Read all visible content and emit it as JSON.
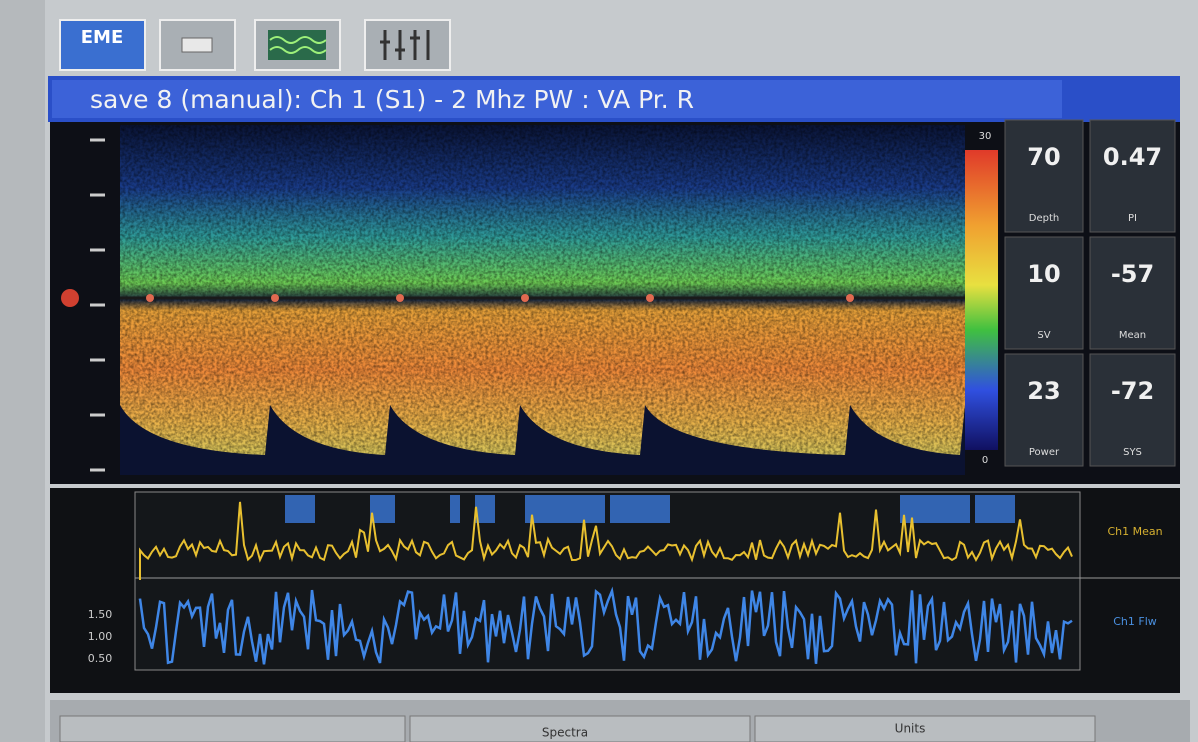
{
  "toolbar": {
    "logo": "EME"
  },
  "header": {
    "title": "save 8 (manual): Ch 1 (S1) - 2 Mhz PW : VA Pr. R"
  },
  "colorbar": {
    "max": "30",
    "min": "0"
  },
  "readouts": [
    {
      "value": "70",
      "label": "Depth"
    },
    {
      "value": "0.47",
      "label": "PI"
    },
    {
      "value": "10",
      "label": "SV"
    },
    {
      "value": "-57",
      "label": "Mean"
    },
    {
      "value": "23",
      "label": "Power"
    },
    {
      "value": "-72",
      "label": "SYS"
    }
  ],
  "lower": {
    "labels": [
      "Ch1 Mean",
      "Ch1 Flw"
    ],
    "scale": [
      "1.50",
      "1.00",
      "0.50"
    ]
  },
  "footer": {
    "tabs": [
      "Spectra",
      "Units"
    ]
  }
}
